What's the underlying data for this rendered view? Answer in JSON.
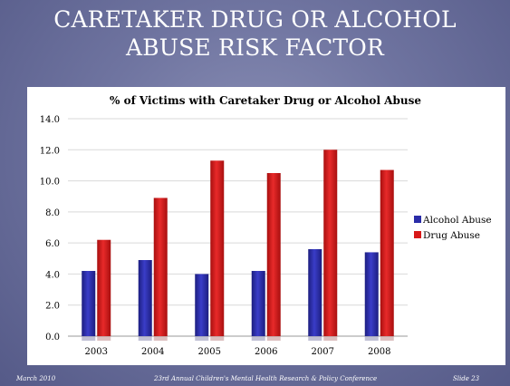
{
  "slide": {
    "title_line1": "CARETAKER DRUG OR ALCOHOL",
    "title_line2": "ABUSE RISK FACTOR"
  },
  "footer": {
    "date": "March 2010",
    "conference": "23rd Annual Children's Mental Health Research & Policy Conference",
    "slide_number": "Slide 23"
  },
  "colors": {
    "alcohol": "#2a2ca8",
    "drug": "#d81818",
    "background": "#6f74a0"
  },
  "chart_data": {
    "type": "bar",
    "title": "% of Victims with Caretaker Drug  or Alcohol  Abuse",
    "categories": [
      "2003",
      "2004",
      "2005",
      "2006",
      "2007",
      "2008"
    ],
    "series": [
      {
        "name": "Alcohol Abuse",
        "values": [
          4.2,
          4.9,
          4.0,
          4.2,
          5.6,
          5.4
        ]
      },
      {
        "name": "Drug Abuse",
        "values": [
          6.2,
          8.9,
          11.3,
          10.5,
          12.0,
          10.7
        ]
      }
    ],
    "y_ticks": [
      "0.0",
      "2.0",
      "4.0",
      "6.0",
      "8.0",
      "10.0",
      "12.0",
      "14.0"
    ],
    "ylim": [
      0,
      14
    ],
    "grid": true,
    "legend_position": "right"
  }
}
